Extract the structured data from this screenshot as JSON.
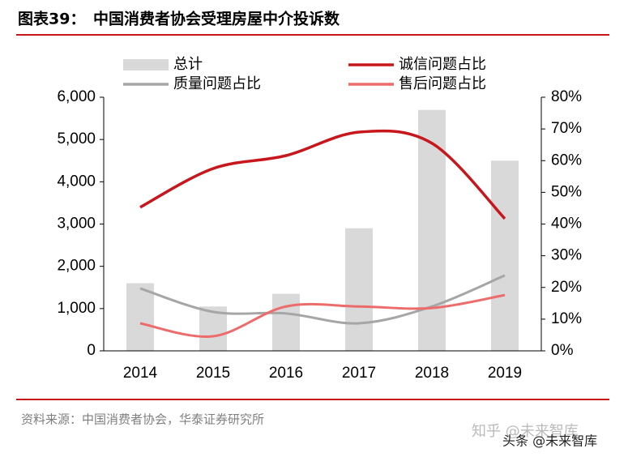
{
  "header": {
    "title": "图表39：　中国消费者协会受理房屋中介投诉数"
  },
  "chart_data": {
    "type": "combo",
    "categories": [
      "2014",
      "2015",
      "2016",
      "2017",
      "2018",
      "2019"
    ],
    "series": [
      {
        "name": "总计",
        "type": "bar",
        "color": "#d9d9d9",
        "values": [
          1600,
          1050,
          1350,
          2900,
          5700,
          4500
        ]
      },
      {
        "name": "诚信问题占比",
        "type": "line",
        "axis": "y2",
        "color": "#c8161d",
        "values": [
          45.3,
          57.5,
          61.6,
          69,
          65.5,
          41.7
        ]
      },
      {
        "name": "质量问题占比",
        "type": "line",
        "axis": "y2",
        "color": "#a6a6a6",
        "values": [
          19.7,
          12.3,
          11.8,
          8.7,
          14,
          23.8
        ]
      },
      {
        "name": "售后问题占比",
        "type": "line",
        "axis": "y2",
        "color": "#ee6b6b",
        "values": [
          8.7,
          4.6,
          14,
          14,
          13.5,
          17.6
        ]
      }
    ],
    "ylim": [
      0,
      6000
    ],
    "yticks": [
      0,
      {
        "value": 1000,
        "label": "1,000"
      },
      {
        "value": 2000,
        "label": "2,000"
      },
      {
        "value": 3000,
        "label": "3,000"
      },
      {
        "value": 4000,
        "label": "4,000"
      },
      {
        "value": 5000,
        "label": "5,000"
      },
      {
        "value": 6000,
        "label": "6,000"
      }
    ],
    "y2lim": [
      0,
      80
    ],
    "y2ticks": [
      {
        "value": 0,
        "label": "0%"
      },
      {
        "value": 10,
        "label": "10%"
      },
      {
        "value": 20,
        "label": "20%"
      },
      {
        "value": 30,
        "label": "30%"
      },
      {
        "value": 40,
        "label": "40%"
      },
      {
        "value": 50,
        "label": "50%"
      },
      {
        "value": 60,
        "label": "60%"
      },
      {
        "value": 70,
        "label": "70%"
      },
      {
        "value": 80,
        "label": "80%"
      }
    ]
  },
  "footer": {
    "source": "资料来源：中国消费者协会，华泰证券研究所",
    "watermarks": [
      "知乎 @未来智库",
      "头条 @未来智库"
    ]
  }
}
